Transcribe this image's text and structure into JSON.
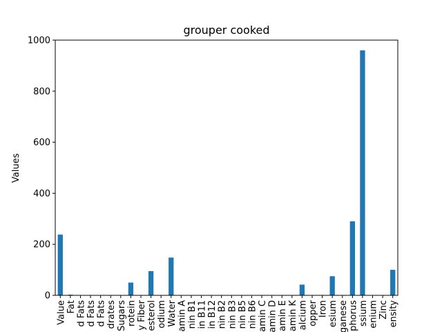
{
  "chart_data": {
    "type": "bar",
    "title": "grouper cooked",
    "xlabel": "",
    "ylabel": "Values",
    "ylim": [
      0,
      1000
    ],
    "yticks": [
      0,
      200,
      400,
      600,
      800,
      1000
    ],
    "grid": false,
    "bar_color": "#1f77b4",
    "categories": [
      "Value",
      "Fat",
      "d Fats",
      "d Fats",
      "d Fats",
      "drates",
      "Sugars",
      "rotein",
      "y Fiber",
      "esterol",
      "odium",
      "Water",
      "amin A",
      "nin B1",
      "in B11",
      "in B12",
      "nin B2",
      "nin B3",
      "nin B5",
      "nin B6",
      "amin C",
      "amin D",
      "amin E",
      "amin K",
      "alcium",
      "opper",
      "Iron",
      "esium",
      "ganese",
      "phorus",
      "ssium",
      "enium",
      "Zinc",
      "ensity"
    ],
    "values": [
      238,
      2.6,
      0.6,
      0.5,
      0.8,
      0,
      0,
      50,
      0,
      95,
      0,
      148,
      0,
      0,
      0,
      0,
      0,
      0,
      0,
      0,
      0,
      0,
      0,
      0,
      42,
      0,
      1.5,
      75,
      0,
      290,
      960,
      0,
      0,
      100
    ]
  }
}
